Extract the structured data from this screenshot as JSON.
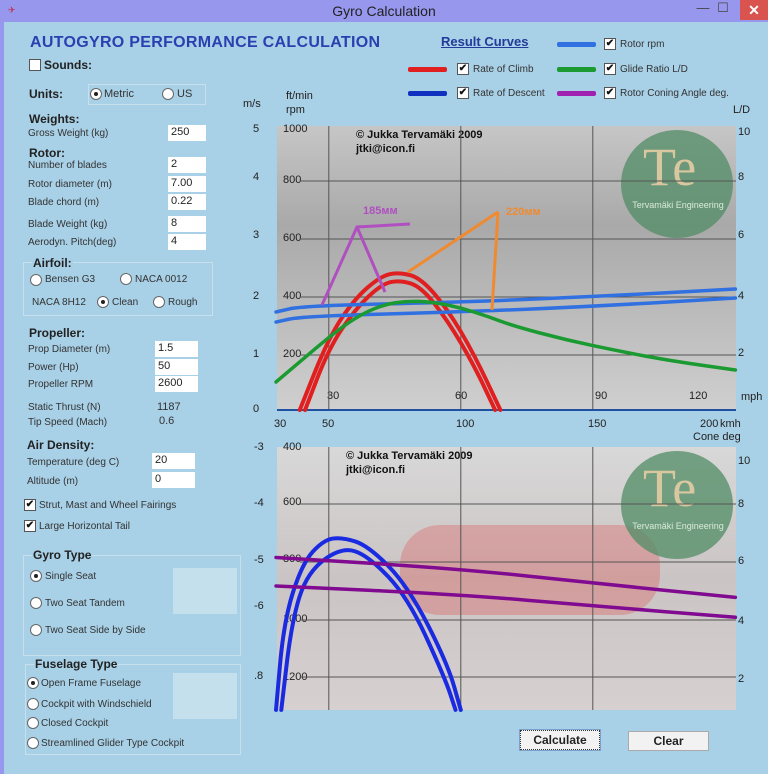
{
  "window": {
    "title": "Gyro Calculation",
    "minimize": "—",
    "maximize": "☐",
    "close": "✕"
  },
  "header": {
    "title": "AUTOGYRO PERFORMANCE CALCULATION",
    "sounds_label": "Sounds:",
    "sounds_checked": false
  },
  "units": {
    "label": "Units:",
    "options": [
      "Metric",
      "US"
    ],
    "selected": "Metric"
  },
  "weights": {
    "heading": "Weights:",
    "gross_weight_label": "Gross Weight (kg)",
    "gross_weight": "250"
  },
  "rotor": {
    "heading": "Rotor:",
    "fields": [
      {
        "label": "Number of blades",
        "value": "2"
      },
      {
        "label": "Rotor diameter (m)",
        "value": "7.00"
      },
      {
        "label": "Blade chord  (m)",
        "value": "0.22"
      },
      {
        "label": "Blade Weight (kg)",
        "value": "8"
      },
      {
        "label": "Aerodyn. Pitch(deg)",
        "value": "4"
      }
    ]
  },
  "airfoil": {
    "heading": "Airfoil:",
    "bensen": "Bensen G3",
    "naca0012": "NACA 0012",
    "naca8h12": "NACA 8H12",
    "clean": "Clean",
    "rough": "Rough",
    "selected": "Clean"
  },
  "propeller": {
    "heading": "Propeller:",
    "fields": [
      {
        "label": "Prop Diameter (m)",
        "value": "1.5"
      },
      {
        "label": "Power (Hp)",
        "value": "50"
      },
      {
        "label": "Propeller RPM",
        "value": "2600"
      }
    ],
    "static_thrust_label": "Static Thrust (N)",
    "static_thrust": "1187",
    "tip_speed_label": "Tip Speed (Mach)",
    "tip_speed": "0.6"
  },
  "air_density": {
    "heading": "Air Density:",
    "fields": [
      {
        "label": "Temperature (deg C)",
        "value": "20"
      },
      {
        "label": "Altitude  (m)",
        "value": "0"
      }
    ]
  },
  "options": [
    {
      "label": "Strut, Mast and Wheel Fairings",
      "checked": true
    },
    {
      "label": "Large Horizontal Tail",
      "checked": true
    }
  ],
  "gyro_type": {
    "heading": "Gyro Type",
    "options": [
      "Single Seat",
      "Two Seat Tandem",
      "Two Seat Side by Side"
    ],
    "selected": 0
  },
  "fuselage_type": {
    "heading": "Fuselage Type",
    "options": [
      "Open Frame Fuselage",
      "Cockpit with Windschield",
      "Closed Cockpit",
      "Streamlined Glider Type Cockpit"
    ],
    "selected": 0
  },
  "legend": {
    "title": "Result Curves",
    "items": [
      {
        "label": "Rotor rpm",
        "color": "#3070e0",
        "checked": true
      },
      {
        "label": "Rate of Climb",
        "color": "#e02020",
        "checked": true
      },
      {
        "label": "Glide Ratio L/D",
        "color": "#1a9a30",
        "checked": true
      },
      {
        "label": "Rate of Descent",
        "color": "#1030c0",
        "checked": true
      },
      {
        "label": "Rotor Coning Angle deg.",
        "color": "#a020b0",
        "checked": true
      }
    ]
  },
  "buttons": {
    "calculate": "Calculate",
    "clear": "Clear"
  },
  "chart_watermark": {
    "copyright": "© Jukka Tervamäki 2009",
    "email": "jtki@icon.fi",
    "logo": "Te",
    "logo_name": "Tervamäki Engineering"
  },
  "annotations": [
    {
      "text": "185мм",
      "color": "#b050c0"
    },
    {
      "text": "220мм",
      "color": "#f08a30"
    }
  ],
  "chart_data": [
    {
      "type": "line",
      "name": "performance-top",
      "axes": {
        "left_unit": "m/s",
        "left2_unit": "ft/min",
        "left3_unit": "rpm",
        "right_unit": "L/D",
        "bottom_unit": "kmh",
        "inner_unit": "mph",
        "ms_ticks": [
          "5",
          "4",
          "3",
          "2",
          "1",
          "0"
        ],
        "ftmin_ticks": [
          "1000",
          "800",
          "600",
          "400",
          "200"
        ],
        "ld_ticks": [
          "10",
          "8",
          "6",
          "4",
          "2"
        ],
        "kmh_ticks": [
          "30",
          "50",
          "100",
          "150",
          "200"
        ],
        "mph_ticks": [
          "30",
          "60",
          "90",
          "120"
        ],
        "xlim_kmh": [
          30,
          204
        ],
        "ylim_ms": [
          0,
          5
        ],
        "ylim_rpm": [
          0,
          1000
        ],
        "ylim_ld": [
          0,
          10
        ],
        "grid": true
      },
      "series": [
        {
          "kind": "climb",
          "unit": "m/s",
          "color": "#e02020",
          "points": [
            [
              39,
              0
            ],
            [
              50,
              1.3
            ],
            [
              60,
              2.0
            ],
            [
              70,
              2.4
            ],
            [
              77,
              2.46
            ],
            [
              85,
              2.35
            ],
            [
              95,
              1.8
            ],
            [
              105,
              1.0
            ],
            [
              115,
              0
            ]
          ]
        },
        {
          "kind": "climb",
          "unit": "m/s",
          "color": "#e02020",
          "points": [
            [
              41,
              0
            ],
            [
              50,
              1.1
            ],
            [
              60,
              1.8
            ],
            [
              70,
              2.25
            ],
            [
              77,
              2.32
            ],
            [
              85,
              2.2
            ],
            [
              95,
              1.6
            ],
            [
              105,
              0.8
            ],
            [
              113,
              0
            ]
          ]
        },
        {
          "kind": "rpm",
          "unit": "rpm",
          "color": "#3070e0",
          "points": [
            [
              30,
              350
            ],
            [
              40,
              372
            ],
            [
              100,
              385
            ],
            [
              150,
              405
            ],
            [
              204,
              432
            ]
          ]
        },
        {
          "kind": "rpm",
          "unit": "rpm",
          "color": "#3070e0",
          "points": [
            [
              30,
              314
            ],
            [
              40,
              335
            ],
            [
              100,
              350
            ],
            [
              150,
              370
            ],
            [
              204,
              400
            ]
          ]
        },
        {
          "kind": "ld",
          "unit": "L/D",
          "color": "#1a9a30",
          "points": [
            [
              30,
              1.0
            ],
            [
              40,
              1.8
            ],
            [
              50,
              2.6
            ],
            [
              60,
              3.3
            ],
            [
              70,
              3.75
            ],
            [
              80,
              3.9
            ],
            [
              90,
              3.85
            ],
            [
              100,
              3.65
            ],
            [
              110,
              3.35
            ],
            [
              120,
              3.0
            ],
            [
              140,
              2.5
            ],
            [
              160,
              2.1
            ],
            [
              180,
              1.75
            ],
            [
              204,
              1.43
            ]
          ]
        }
      ]
    },
    {
      "type": "line",
      "name": "performance-bottom",
      "axes": {
        "left_unit": "m/s",
        "left2_unit": "ft/min",
        "right_unit": "Cone deg",
        "ms_ticks": [
          "-3",
          "-4",
          "-5",
          "-6",
          ".8"
        ],
        "ftmin_ticks": [
          "400",
          "600",
          "800",
          "1000",
          "1200"
        ],
        "cone_ticks": [
          "10",
          "8",
          "6",
          "4",
          "2"
        ],
        "grid": true
      },
      "series": [
        {
          "kind": "descent",
          "unit": "ft/min",
          "color": "#1a2ae0",
          "points": [
            [
              30,
              1311
            ],
            [
              33,
              1000
            ],
            [
              40,
              800
            ],
            [
              48,
              720
            ],
            [
              55,
              710
            ],
            [
              65,
              740
            ],
            [
              80,
              880
            ],
            [
              95,
              1150
            ],
            [
              100,
              1311
            ]
          ]
        },
        {
          "kind": "descent",
          "unit": "ft/min",
          "color": "#1a2ae0",
          "points": [
            [
              32,
              1311
            ],
            [
              36,
              1000
            ],
            [
              42,
              830
            ],
            [
              55,
              744
            ],
            [
              65,
              775
            ],
            [
              80,
              920
            ],
            [
              94,
              1200
            ],
            [
              98,
              1311
            ]
          ]
        },
        {
          "kind": "cone",
          "unit": "deg",
          "color": "#800a90",
          "points": [
            [
              30,
              6.3
            ],
            [
              100,
              5.9
            ],
            [
              150,
              5.4
            ],
            [
              204,
              4.9
            ]
          ]
        },
        {
          "kind": "cone",
          "unit": "deg",
          "color": "#800a90",
          "points": [
            [
              30,
              5.3
            ],
            [
              100,
              5.0
            ],
            [
              150,
              4.6
            ],
            [
              204,
              4.2
            ]
          ]
        }
      ]
    }
  ]
}
